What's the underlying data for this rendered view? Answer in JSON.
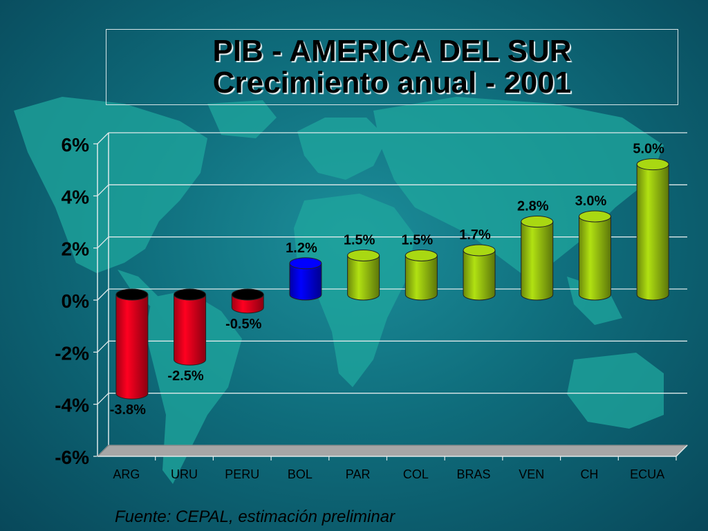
{
  "title": {
    "line1": "PIB  - AMERICA DEL SUR",
    "line2": "Crecimiento anual - 2001"
  },
  "footer": "Fuente: CEPAL, estimación preliminar",
  "colors": {
    "negative": "#e8001c",
    "bol": "#0000ee",
    "positive": "#9ac410",
    "floor": "#a6a6a6"
  },
  "chart_data": {
    "type": "bar",
    "categories": [
      "ARG",
      "URU",
      "PERU",
      "BOL",
      "PAR",
      "COL",
      "BRAS",
      "VEN",
      "CH",
      "ECUA"
    ],
    "values": [
      -3.8,
      -2.5,
      -0.5,
      1.2,
      1.5,
      1.5,
      1.7,
      2.8,
      3.0,
      5.0
    ],
    "data_labels": [
      "-3.8%",
      "-2.5%",
      "-0.5%",
      "1.2%",
      "1.5%",
      "1.5%",
      "1.7%",
      "2.8%",
      "3.0%",
      "5.0%"
    ],
    "bar_colors": [
      "negative",
      "negative",
      "negative",
      "bol",
      "positive",
      "positive",
      "positive",
      "positive",
      "positive",
      "positive"
    ],
    "y_ticks": [
      6,
      4,
      2,
      0,
      -2,
      -4,
      -6
    ],
    "y_tick_labels": [
      "6%",
      "4%",
      "2%",
      "0%",
      "-2%",
      "-4%",
      "-6%"
    ],
    "ylim": [
      -6,
      6
    ],
    "grid": true,
    "style": "3d-cylinder"
  }
}
